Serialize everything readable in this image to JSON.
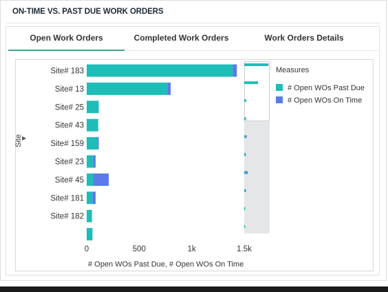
{
  "panel": {
    "title": "ON-TIME VS. PAST DUE WORK ORDERS"
  },
  "tabs": [
    {
      "label": "Open Work Orders",
      "active": true
    },
    {
      "label": "Completed Work Orders",
      "active": false
    },
    {
      "label": "Work Orders Details",
      "active": false
    }
  ],
  "colors": {
    "past_due": "#1fbdb8",
    "on_time": "#5b7be8",
    "active_tab_underline": "#3fa37a"
  },
  "chart_data": {
    "type": "bar",
    "orientation": "horizontal",
    "stacked": true,
    "categories": [
      "Site# 183",
      "Site# 13",
      "Site# 25",
      "Site# 43",
      "Site# 159",
      "Site# 23",
      "Site# 45",
      "Site# 181",
      "Site# 182",
      ""
    ],
    "series": [
      {
        "name": "# Open WOs Past Due",
        "values": [
          1390,
          770,
          115,
          110,
          105,
          60,
          60,
          55,
          50,
          55
        ]
      },
      {
        "name": "# Open WOs On Time",
        "values": [
          40,
          30,
          0,
          0,
          10,
          25,
          150,
          30,
          0,
          0
        ]
      }
    ],
    "xlabel": "# Open WOs Past Due, # Open WOs On Time",
    "ylabel": "Site",
    "xlim": [
      0,
      1500
    ],
    "xticks": [
      0,
      500,
      1000,
      1500
    ],
    "xtick_labels": [
      "0",
      "500",
      "1k",
      "1.5k"
    ],
    "legend": {
      "title": "Measures",
      "position": "right",
      "entries": [
        "# Open WOs Past Due",
        "# Open WOs On Time"
      ]
    },
    "grid": false
  }
}
